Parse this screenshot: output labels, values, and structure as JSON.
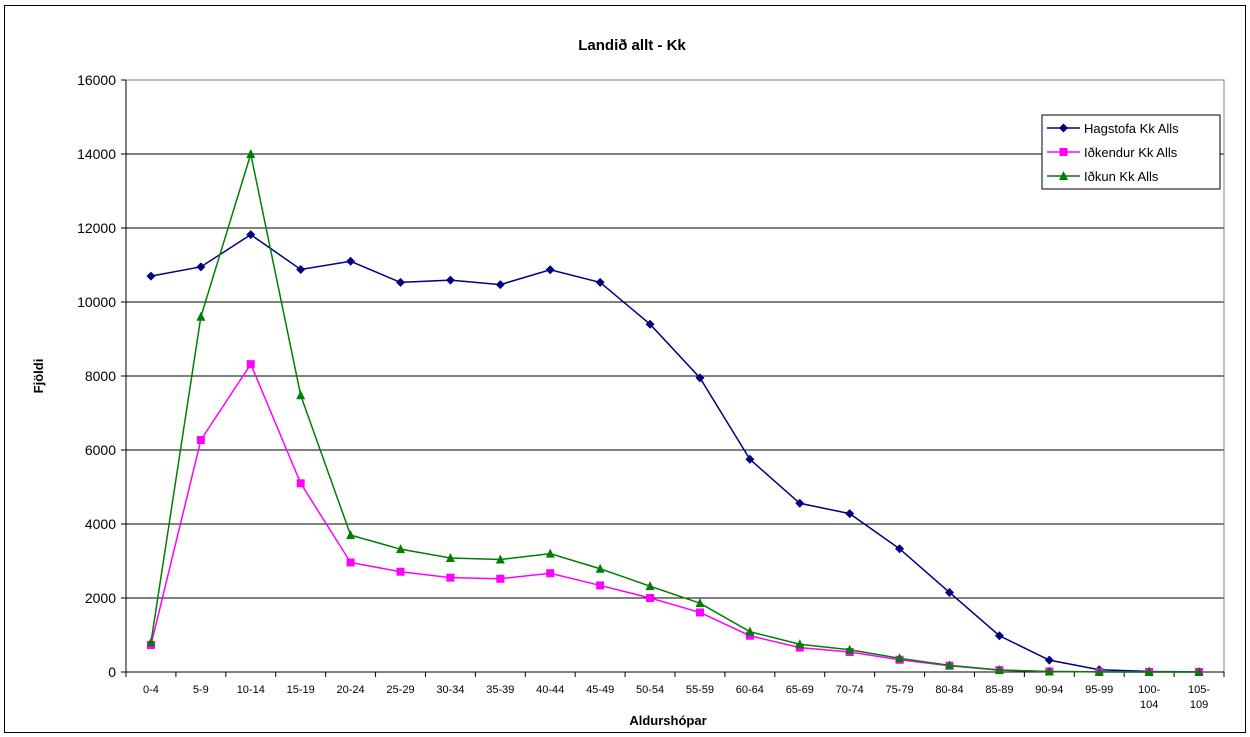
{
  "chart_data": {
    "type": "line",
    "title": "Landið allt - Kk",
    "xlabel": "Aldurshópar",
    "ylabel": "Fjöldi",
    "ylim": [
      0,
      16000
    ],
    "yticks": [
      0,
      2000,
      4000,
      6000,
      8000,
      10000,
      12000,
      14000,
      16000
    ],
    "grid": true,
    "legend_position": "top-right",
    "categories": [
      [
        "0-4"
      ],
      [
        "5-9"
      ],
      [
        "10-14"
      ],
      [
        "15-19"
      ],
      [
        "20-24"
      ],
      [
        "25-29"
      ],
      [
        "30-34"
      ],
      [
        "35-39"
      ],
      [
        "40-44"
      ],
      [
        "45-49"
      ],
      [
        "50-54"
      ],
      [
        "55-59"
      ],
      [
        "60-64"
      ],
      [
        "65-69"
      ],
      [
        "70-74"
      ],
      [
        "75-79"
      ],
      [
        "80-84"
      ],
      [
        "85-89"
      ],
      [
        "90-94"
      ],
      [
        "95-99"
      ],
      [
        "100-",
        "104"
      ],
      [
        "105-",
        "109"
      ]
    ],
    "series": [
      {
        "name": "Hagstofa Kk Alls",
        "color": "#000080",
        "marker": "diamond",
        "values": [
          10700,
          10950,
          11820,
          10880,
          11100,
          10530,
          10590,
          10470,
          10870,
          10530,
          9400,
          7950,
          5750,
          4560,
          4280,
          3330,
          2150,
          980,
          320,
          60,
          15,
          5
        ]
      },
      {
        "name": "Iðkendur Kk Alls",
        "color": "#FF00FF",
        "marker": "square",
        "values": [
          730,
          6270,
          8320,
          5100,
          2960,
          2710,
          2550,
          2520,
          2670,
          2340,
          2000,
          1610,
          980,
          660,
          540,
          330,
          170,
          50,
          15,
          5,
          0,
          0
        ]
      },
      {
        "name": "Iðkun Kk Alls",
        "color": "#007F00",
        "marker": "triangle",
        "values": [
          800,
          9600,
          14000,
          7480,
          3700,
          3320,
          3080,
          3040,
          3200,
          2790,
          2320,
          1860,
          1090,
          750,
          600,
          370,
          180,
          55,
          15,
          5,
          0,
          0
        ]
      }
    ]
  }
}
